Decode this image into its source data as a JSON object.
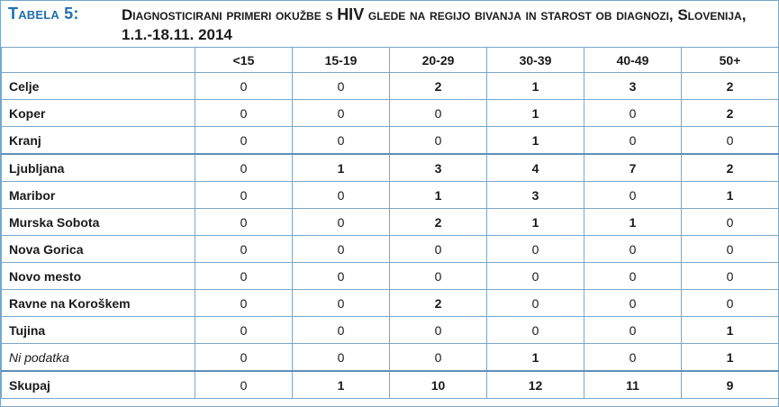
{
  "table": {
    "label": "Tabela 5:",
    "title_part1": "Diagnosticirani primeri okužbe s ",
    "title_hiv": "HIV",
    "title_part2": " glede na regijo bivanja in starost ob diagnozi, Slovenija, 1.1.-18.11. 2014",
    "columns": [
      "",
      "<15",
      "15-19",
      "20-29",
      "30-39",
      "40-49",
      "50+"
    ],
    "rows": [
      {
        "label": "Celje",
        "values": [
          "0",
          "0",
          "2",
          "1",
          "3",
          "2"
        ]
      },
      {
        "label": "Koper",
        "values": [
          "0",
          "0",
          "0",
          "1",
          "0",
          "2"
        ]
      },
      {
        "label": "Kranj",
        "values": [
          "0",
          "0",
          "0",
          "1",
          "0",
          "0"
        ]
      },
      {
        "label": "Ljubljana",
        "values": [
          "0",
          "1",
          "3",
          "4",
          "7",
          "2"
        ]
      },
      {
        "label": "Maribor",
        "values": [
          "0",
          "0",
          "1",
          "3",
          "0",
          "1"
        ]
      },
      {
        "label": "Murska Sobota",
        "values": [
          "0",
          "0",
          "2",
          "1",
          "1",
          "0"
        ]
      },
      {
        "label": "Nova Gorica",
        "values": [
          "0",
          "0",
          "0",
          "0",
          "0",
          "0"
        ]
      },
      {
        "label": "Novo mesto",
        "values": [
          "0",
          "0",
          "0",
          "0",
          "0",
          "0"
        ]
      },
      {
        "label": "Ravne na Koroškem",
        "values": [
          "0",
          "0",
          "2",
          "0",
          "0",
          "0"
        ]
      },
      {
        "label": "Tujina",
        "values": [
          "0",
          "0",
          "0",
          "0",
          "0",
          "1"
        ]
      },
      {
        "label": "Ni podatka",
        "values": [
          "0",
          "0",
          "0",
          "1",
          "0",
          "1"
        ]
      },
      {
        "label": "Skupaj",
        "values": [
          "0",
          "1",
          "10",
          "12",
          "11",
          "9"
        ]
      }
    ]
  },
  "colors": {
    "label_blue": "#1f6fb2",
    "border": "#7aa6c8"
  }
}
